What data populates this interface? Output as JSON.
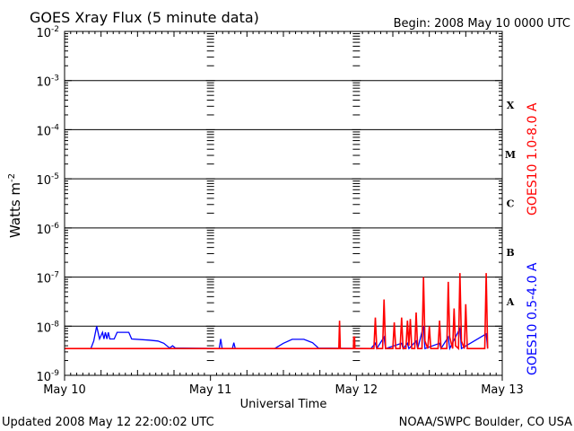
{
  "chart_data": {
    "type": "line",
    "title": "GOES Xray Flux (5 minute data)",
    "begin_label": "Begin:  2008 May 10 0000 UTC",
    "xlabel": "Universal Time",
    "ylabel": "Watts m",
    "ylabel_superscript": "-2",
    "yscale": "log",
    "ylim": [
      1e-09,
      0.01
    ],
    "xlim": [
      0,
      3
    ],
    "x_ticks": [
      {
        "x": 0,
        "label": "May 10"
      },
      {
        "x": 1,
        "label": "May 11"
      },
      {
        "x": 2,
        "label": "May 12"
      },
      {
        "x": 3,
        "label": "May 13"
      }
    ],
    "y_ticks": [
      {
        "exp": -9,
        "base": "10",
        "sup": "-9"
      },
      {
        "exp": -8,
        "base": "10",
        "sup": "-8"
      },
      {
        "exp": -7,
        "base": "10",
        "sup": "-7"
      },
      {
        "exp": -6,
        "base": "10",
        "sup": "-6"
      },
      {
        "exp": -5,
        "base": "10",
        "sup": "-5"
      },
      {
        "exp": -4,
        "base": "10",
        "sup": "-4"
      },
      {
        "exp": -3,
        "base": "10",
        "sup": "-3"
      },
      {
        "exp": -2,
        "base": "10",
        "sup": "-2"
      }
    ],
    "flare_classes": [
      {
        "label": "X",
        "exp": -3.5
      },
      {
        "label": "M",
        "exp": -4.5
      },
      {
        "label": "C",
        "exp": -5.5
      },
      {
        "label": "B",
        "exp": -6.5
      },
      {
        "label": "A",
        "exp": -7.5
      }
    ],
    "grid": true,
    "series": [
      {
        "name": "GOES10 1.0-8.0 A",
        "color": "#ff0000",
        "points": [
          [
            0.0,
            3.5e-09
          ],
          [
            1.45,
            3.5e-09
          ],
          [
            1.88,
            3.5e-09
          ],
          [
            1.885,
            1.3e-08
          ],
          [
            1.89,
            3.5e-09
          ],
          [
            1.89,
            3.5e-09
          ],
          [
            1.98,
            3.5e-09
          ],
          [
            1.982,
            6e-09
          ],
          [
            1.988,
            6e-09
          ],
          [
            1.99,
            3.5e-09
          ],
          [
            2.12,
            3.5e-09
          ],
          [
            2.13,
            1.5e-08
          ],
          [
            2.14,
            3.5e-09
          ],
          [
            2.18,
            3.5e-09
          ],
          [
            2.19,
            3.5e-08
          ],
          [
            2.2,
            3.5e-09
          ],
          [
            2.25,
            3.5e-09
          ],
          [
            2.26,
            1.2e-08
          ],
          [
            2.27,
            3.5e-09
          ],
          [
            2.3,
            3.5e-09
          ],
          [
            2.31,
            1.5e-08
          ],
          [
            2.32,
            3.5e-09
          ],
          [
            2.34,
            3.5e-09
          ],
          [
            2.35,
            1.3e-08
          ],
          [
            2.36,
            4e-09
          ],
          [
            2.37,
            1.4e-08
          ],
          [
            2.38,
            3.5e-09
          ],
          [
            2.4,
            3.5e-09
          ],
          [
            2.41,
            1.9e-08
          ],
          [
            2.42,
            3.5e-09
          ],
          [
            2.45,
            3.5e-09
          ],
          [
            2.46,
            1e-07
          ],
          [
            2.47,
            5e-09
          ],
          [
            2.49,
            3.5e-09
          ],
          [
            2.5,
            1e-08
          ],
          [
            2.51,
            3.5e-09
          ],
          [
            2.56,
            3.5e-09
          ],
          [
            2.57,
            1.3e-08
          ],
          [
            2.58,
            3.5e-09
          ],
          [
            2.62,
            3.5e-09
          ],
          [
            2.63,
            8e-08
          ],
          [
            2.64,
            6e-09
          ],
          [
            2.66,
            3.5e-09
          ],
          [
            2.67,
            2.3e-08
          ],
          [
            2.68,
            4e-09
          ],
          [
            2.7,
            3.5e-09
          ],
          [
            2.71,
            1.2e-07
          ],
          [
            2.72,
            5e-09
          ],
          [
            2.74,
            3.5e-09
          ],
          [
            2.75,
            2.8e-08
          ],
          [
            2.76,
            3.5e-09
          ],
          [
            2.88,
            3.5e-09
          ],
          [
            2.89,
            1.2e-07
          ],
          [
            2.9,
            3.5e-09
          ]
        ]
      },
      {
        "name": "GOES10 0.5-4.0 A",
        "color": "#0000ff",
        "points": [
          [
            0.0,
            3.5e-09
          ],
          [
            0.18,
            3.5e-09
          ],
          [
            0.2,
            5e-09
          ],
          [
            0.22,
            1e-08
          ],
          [
            0.24,
            5.5e-09
          ],
          [
            0.26,
            7.5e-09
          ],
          [
            0.27,
            5.5e-09
          ],
          [
            0.28,
            7.5e-09
          ],
          [
            0.29,
            5.5e-09
          ],
          [
            0.3,
            7.5e-09
          ],
          [
            0.31,
            5.5e-09
          ],
          [
            0.34,
            5.5e-09
          ],
          [
            0.36,
            7.5e-09
          ],
          [
            0.44,
            7.5e-09
          ],
          [
            0.46,
            5.5e-09
          ],
          [
            0.58,
            5.2e-09
          ],
          [
            0.64,
            5e-09
          ],
          [
            0.68,
            4.5e-09
          ],
          [
            0.72,
            3.6e-09
          ],
          [
            0.74,
            4e-09
          ],
          [
            0.76,
            3.6e-09
          ],
          [
            0.8,
            3.6e-09
          ],
          [
            0.81,
            3.6e-09
          ],
          [
            1.06,
            3.5e-09
          ],
          [
            1.07,
            5.5e-09
          ],
          [
            1.08,
            3.5e-09
          ],
          [
            1.15,
            3.5e-09
          ],
          [
            1.16,
            4.6e-09
          ],
          [
            1.17,
            3.5e-09
          ],
          [
            1.44,
            3.5e-09
          ],
          [
            1.5,
            4.5e-09
          ],
          [
            1.56,
            5.4e-09
          ],
          [
            1.64,
            5.4e-09
          ],
          [
            1.7,
            4.6e-09
          ],
          [
            1.74,
            3.6e-09
          ],
          [
            2.1,
            3.5e-09
          ],
          [
            2.13,
            4.5e-09
          ],
          [
            2.14,
            3.5e-09
          ],
          [
            2.19,
            6e-09
          ],
          [
            2.2,
            3.5e-09
          ],
          [
            2.31,
            4.5e-09
          ],
          [
            2.32,
            3.5e-09
          ],
          [
            2.35,
            4.5e-09
          ],
          [
            2.36,
            3.5e-09
          ],
          [
            2.41,
            5e-09
          ],
          [
            2.42,
            3.5e-09
          ],
          [
            2.46,
            1e-08
          ],
          [
            2.47,
            3.5e-09
          ],
          [
            2.57,
            4.5e-09
          ],
          [
            2.58,
            3.5e-09
          ],
          [
            2.63,
            6e-09
          ],
          [
            2.64,
            3.5e-09
          ],
          [
            2.71,
            9e-09
          ],
          [
            2.72,
            3.5e-09
          ],
          [
            2.89,
            7e-09
          ],
          [
            2.9,
            3.5e-09
          ]
        ]
      }
    ]
  },
  "footer": {
    "updated": "Updated 2008 May 12 22:00:02 UTC",
    "source": "NOAA/SWPC Boulder, CO USA"
  }
}
